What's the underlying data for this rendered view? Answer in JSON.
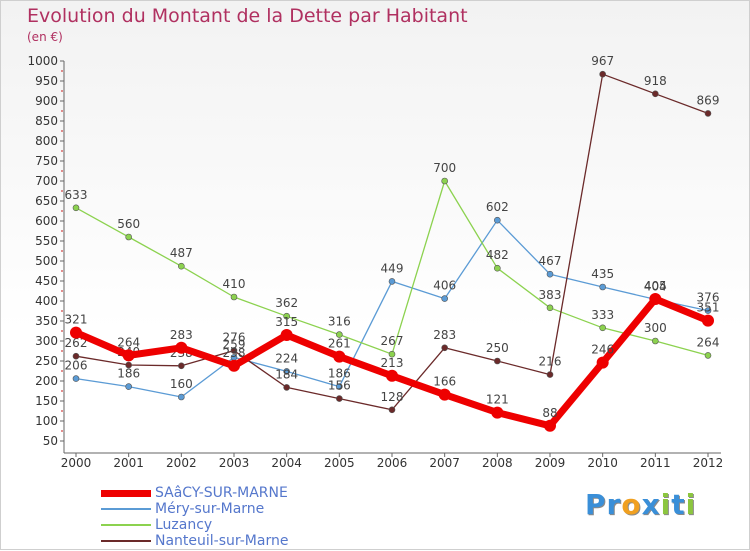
{
  "chart_data": {
    "type": "line",
    "title": "Evolution du Montant de la Dette par Habitant",
    "subtitle": "(en €)",
    "xlabel": "",
    "ylabel": "",
    "ylim": [
      50,
      1000
    ],
    "y_ticks": [
      50,
      100,
      150,
      200,
      250,
      300,
      350,
      400,
      450,
      500,
      550,
      600,
      650,
      700,
      750,
      800,
      850,
      900,
      950,
      1000
    ],
    "categories": [
      "2000",
      "2001",
      "2002",
      "2003",
      "2004",
      "2005",
      "2006",
      "2007",
      "2008",
      "2009",
      "2010",
      "2011",
      "2012"
    ],
    "grid": false,
    "legend_position": "bottom-left",
    "series": [
      {
        "name": "SAâCY-SUR-MARNE",
        "color": "#ee0000",
        "values": [
          321,
          264,
          283,
          238,
          315,
          261,
          213,
          166,
          121,
          88,
          246,
          405,
          351
        ]
      },
      {
        "name": "Méry-sur-Marne",
        "color": "#5b9bd5",
        "values": [
          206,
          186,
          160,
          259,
          224,
          186,
          449,
          406,
          602,
          467,
          435,
          404,
          376
        ]
      },
      {
        "name": "Luzancy",
        "color": "#8cd24f",
        "values": [
          633,
          560,
          487,
          410,
          362,
          316,
          267,
          700,
          482,
          383,
          333,
          300,
          264
        ]
      },
      {
        "name": "Nanteuil-sur-Marne",
        "color": "#6b2a2a",
        "values": [
          262,
          240,
          238,
          276,
          184,
          156,
          128,
          283,
          250,
          216,
          967,
          918,
          869
        ]
      }
    ]
  },
  "logo": {
    "letters": [
      {
        "char": "P",
        "color": "#3a8fd8"
      },
      {
        "char": "r",
        "color": "#3a8fd8"
      },
      {
        "char": "o",
        "color": "#f0a020"
      },
      {
        "char": "x",
        "color": "#3a8fd8"
      },
      {
        "char": "i",
        "color": "#8cc63f"
      },
      {
        "char": "t",
        "color": "#3a8fd8"
      },
      {
        "char": "i",
        "color": "#8cc63f"
      }
    ]
  }
}
